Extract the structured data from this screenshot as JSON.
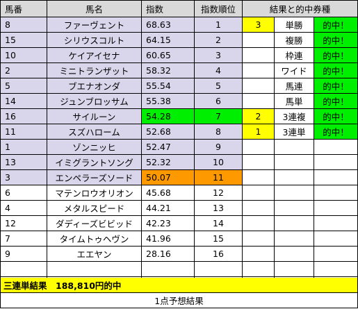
{
  "headers": {
    "number": "馬番",
    "name": "馬名",
    "index": "指数",
    "rank": "指数順位",
    "result_ticket": "結果と的中券種"
  },
  "rows": [
    {
      "number": "8",
      "name": "ファーヴェント",
      "index": "68.63",
      "rank": "1",
      "result": "3",
      "ticket": "単勝",
      "hit": "的中！"
    },
    {
      "number": "15",
      "name": "シリウスコルト",
      "index": "64.15",
      "rank": "2",
      "result": "",
      "ticket": "複勝",
      "hit": "的中！"
    },
    {
      "number": "10",
      "name": "ケイアイセナ",
      "index": "60.65",
      "rank": "3",
      "result": "",
      "ticket": "枠連",
      "hit": "的中！"
    },
    {
      "number": "2",
      "name": "ミニトランザット",
      "index": "58.32",
      "rank": "4",
      "result": "",
      "ticket": "ワイド",
      "hit": "的中！"
    },
    {
      "number": "5",
      "name": "ブエナオンダ",
      "index": "55.54",
      "rank": "5",
      "result": "",
      "ticket": "馬連",
      "hit": "的中！"
    },
    {
      "number": "14",
      "name": "ジュンブロッサム",
      "index": "55.38",
      "rank": "6",
      "result": "",
      "ticket": "馬単",
      "hit": "的中！"
    },
    {
      "number": "16",
      "name": "サイルーン",
      "index": "54.28",
      "rank": "7",
      "result": "2",
      "ticket": "3連複",
      "hit": "的中！"
    },
    {
      "number": "11",
      "name": "スズハローム",
      "index": "52.68",
      "rank": "8",
      "result": "1",
      "ticket": "3連単",
      "hit": "的中！"
    },
    {
      "number": "1",
      "name": "ゾンニッヒ",
      "index": "52.47",
      "rank": "9",
      "result": "",
      "ticket": "",
      "hit": ""
    },
    {
      "number": "13",
      "name": "イミグラントソング",
      "index": "52.32",
      "rank": "10",
      "result": "",
      "ticket": "",
      "hit": ""
    },
    {
      "number": "3",
      "name": "エンペラーズソード",
      "index": "50.07",
      "rank": "11",
      "result": "",
      "ticket": "",
      "hit": ""
    },
    {
      "number": "6",
      "name": "マテンロウオリオン",
      "index": "45.68",
      "rank": "12",
      "result": "",
      "ticket": "",
      "hit": ""
    },
    {
      "number": "4",
      "name": "メタルスピード",
      "index": "44.21",
      "rank": "13",
      "result": "",
      "ticket": "",
      "hit": ""
    },
    {
      "number": "12",
      "name": "ダディーズビビッド",
      "index": "42.23",
      "rank": "14",
      "result": "",
      "ticket": "",
      "hit": ""
    },
    {
      "number": "7",
      "name": "タイムトゥヘヴン",
      "index": "41.96",
      "rank": "15",
      "result": "",
      "ticket": "",
      "hit": ""
    },
    {
      "number": "9",
      "name": "エエヤン",
      "index": "28.16",
      "rank": "16",
      "result": "",
      "ticket": "",
      "hit": ""
    },
    {
      "number": "",
      "name": "",
      "index": "",
      "rank": "",
      "result": "",
      "ticket": "",
      "hit": ""
    },
    {
      "number": "",
      "name": "",
      "index": "",
      "rank": "",
      "result": "",
      "ticket": "",
      "hit": ""
    }
  ],
  "banner": {
    "result_text": "三連単結果　188,810円的中",
    "note_text": "1点予想結果"
  },
  "colors": {
    "header_bg": "#d9d9d9",
    "top_rank_bg": "#d9d5ea",
    "index_highlight_green": "#00ee00",
    "index_highlight_orange": "#ff9900",
    "result_yellow": "#ffff00",
    "hit_green": "#00ee00",
    "banner_yellow": "#ffff00"
  }
}
